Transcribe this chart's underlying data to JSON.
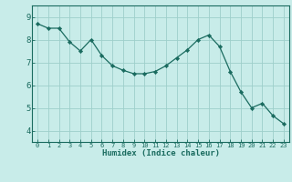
{
  "x": [
    0,
    1,
    2,
    3,
    4,
    5,
    6,
    7,
    8,
    9,
    10,
    11,
    12,
    13,
    14,
    15,
    16,
    17,
    18,
    19,
    20,
    21,
    22,
    23
  ],
  "y": [
    8.7,
    8.5,
    8.5,
    7.9,
    7.5,
    8.0,
    7.3,
    6.85,
    6.65,
    6.5,
    6.5,
    6.6,
    6.85,
    7.2,
    7.55,
    8.0,
    8.2,
    7.7,
    6.6,
    5.7,
    5.0,
    5.2,
    4.65,
    4.3
  ],
  "xlabel": "Humidex (Indice chaleur)",
  "bg_color": "#c8ece9",
  "grid_color": "#9dcfca",
  "line_color": "#1a6b5f",
  "marker_color": "#1a6b5f",
  "tick_label_color": "#1a6b5f",
  "axis_label_color": "#1a6b5f",
  "ylim_min": 3.5,
  "ylim_max": 9.5,
  "yticks": [
    4,
    5,
    6,
    7,
    8,
    9
  ],
  "xticks": [
    0,
    1,
    2,
    3,
    4,
    5,
    6,
    7,
    8,
    9,
    10,
    11,
    12,
    13,
    14,
    15,
    16,
    17,
    18,
    19,
    20,
    21,
    22,
    23
  ]
}
